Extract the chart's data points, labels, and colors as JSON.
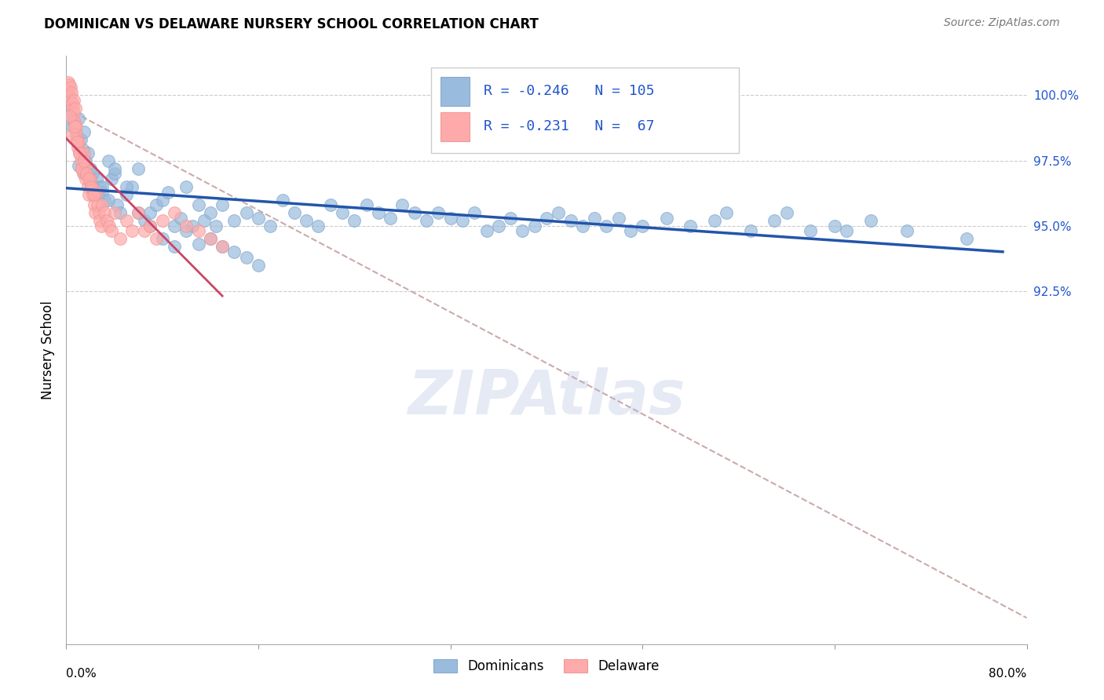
{
  "title": "DOMINICAN VS DELAWARE NURSERY SCHOOL CORRELATION CHART",
  "source": "Source: ZipAtlas.com",
  "ylabel": "Nursery School",
  "xlim": [
    0.0,
    80.0
  ],
  "ylim": [
    79.0,
    101.5
  ],
  "ytick_positions": [
    92.5,
    95.0,
    97.5,
    100.0
  ],
  "ytick_labels": [
    "92.5%",
    "95.0%",
    "97.5%",
    "100.0%"
  ],
  "blue_color": "#99BBDD",
  "blue_edge": "#88AACC",
  "pink_color": "#FFAAAA",
  "pink_edge": "#EE9999",
  "trend_blue_color": "#2255AA",
  "trend_pink_color": "#CC4466",
  "trend_dashed_color": "#CCAAAA",
  "watermark": "ZIPAtlas",
  "watermark_color": "#AABBDD",
  "title_fontsize": 12,
  "source_fontsize": 10,
  "ytick_fontsize": 11,
  "legend_fontsize": 13
}
